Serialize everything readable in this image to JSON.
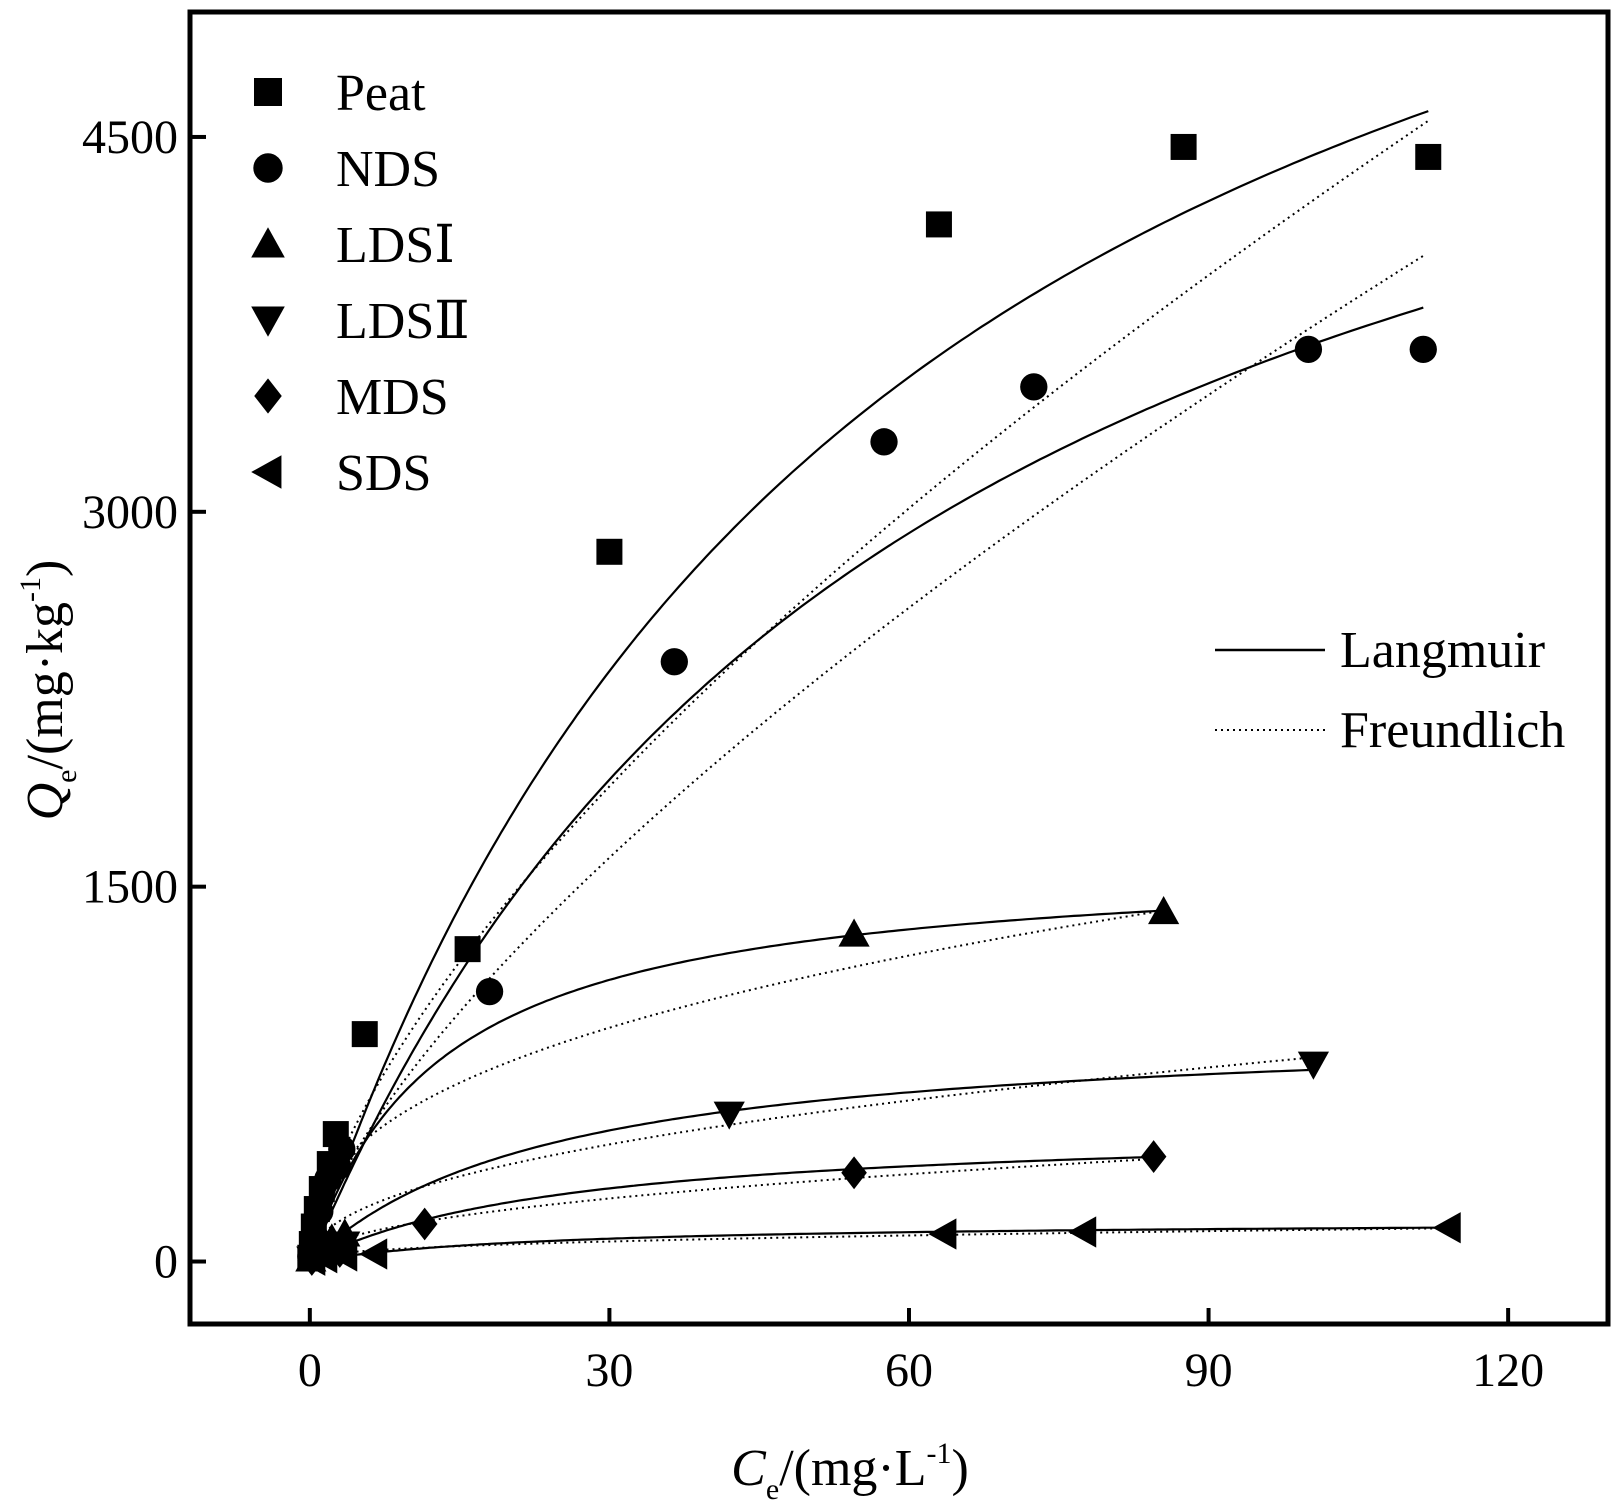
{
  "chart_data": {
    "type": "scatter",
    "title": "",
    "xlabel": {
      "main": "C",
      "sub": "e",
      "units_pre": "/(mg·L",
      "sup": "-1",
      "units_post": ")"
    },
    "ylabel": {
      "main": "Q",
      "sub": "e",
      "units_pre": "/(mg·kg",
      "sup": "-1",
      "units_post": ")"
    },
    "xlim": [
      -12,
      130
    ],
    "ylim": [
      -250,
      5000
    ],
    "xticks": [
      0,
      30,
      60,
      90,
      120
    ],
    "yticks": [
      0,
      1500,
      3000,
      4500
    ],
    "xtick_labels": [
      "0",
      "30",
      "60",
      "90",
      "120"
    ],
    "ytick_labels": [
      "0",
      "1500",
      "3000",
      "4500"
    ],
    "series": [
      {
        "name": "Peat",
        "marker": "square",
        "points": [
          [
            0.05,
            15
          ],
          [
            0.2,
            70
          ],
          [
            0.4,
            140
          ],
          [
            0.7,
            210
          ],
          [
            1.2,
            290
          ],
          [
            2.0,
            390
          ],
          [
            2.6,
            510
          ],
          [
            5.5,
            910
          ],
          [
            15.8,
            1250
          ],
          [
            30,
            2840
          ],
          [
            63,
            4150
          ],
          [
            87.5,
            4460
          ],
          [
            112,
            4420
          ]
        ],
        "langmuir": {
          "qm": 7050,
          "b": 0.0168,
          "xmax": 112
        },
        "freundlich": {
          "kf": 198,
          "n": 0.665,
          "xmax": 112
        }
      },
      {
        "name": "NDS",
        "marker": "circle",
        "points": [
          [
            0.1,
            20
          ],
          [
            0.5,
            100
          ],
          [
            1.0,
            200
          ],
          [
            1.8,
            330
          ],
          [
            2.8,
            380
          ],
          [
            3.2,
            450
          ],
          [
            18,
            1080
          ],
          [
            36.5,
            2400
          ],
          [
            57.5,
            3280
          ],
          [
            72.5,
            3500
          ],
          [
            100,
            3650
          ],
          [
            111.5,
            3650
          ]
        ],
        "langmuir": {
          "qm": 5970,
          "b": 0.0159,
          "xmax": 111.5
        },
        "freundlich": {
          "kf": 152,
          "n": 0.695,
          "xmax": 111.5
        }
      },
      {
        "name": "LDSⅠ",
        "marker": "triangle-up",
        "points": [
          [
            0.1,
            10
          ],
          [
            0.5,
            40
          ],
          [
            1.2,
            70
          ],
          [
            2.2,
            90
          ],
          [
            3.5,
            110
          ],
          [
            54.5,
            1310
          ],
          [
            85.5,
            1400
          ]
        ],
        "langmuir": {
          "qm": 1620,
          "b": 0.0762,
          "xmax": 85
        },
        "freundlich": {
          "kf": 250,
          "n": 0.388,
          "xmax": 85
        }
      },
      {
        "name": "LDSⅡ",
        "marker": "triangle-down",
        "points": [
          [
            0.2,
            10
          ],
          [
            0.8,
            30
          ],
          [
            2.0,
            50
          ],
          [
            3.5,
            70
          ],
          [
            42,
            590
          ],
          [
            100.5,
            790
          ]
        ],
        "langmuir": {
          "qm": 955,
          "b": 0.0406,
          "xmax": 100
        },
        "freundlich": {
          "kf": 98,
          "n": 0.46,
          "xmax": 100
        }
      },
      {
        "name": "MDS",
        "marker": "diamond",
        "points": [
          [
            0.2,
            8
          ],
          [
            1.0,
            20
          ],
          [
            3.0,
            40
          ],
          [
            11.5,
            150
          ],
          [
            54.5,
            355
          ],
          [
            84.5,
            420
          ]
        ],
        "langmuir": {
          "qm": 548,
          "b": 0.0382,
          "xmax": 84.5
        },
        "freundlich": {
          "kf": 51,
          "n": 0.47,
          "xmax": 84.5
        }
      },
      {
        "name": "SDS",
        "marker": "triangle-left",
        "points": [
          [
            0.3,
            5
          ],
          [
            1.5,
            15
          ],
          [
            3.5,
            22
          ],
          [
            6.5,
            30
          ],
          [
            63.5,
            110
          ],
          [
            77.5,
            118
          ],
          [
            114,
            135
          ]
        ],
        "langmuir": {
          "qm": 164,
          "b": 0.042,
          "xmax": 114
        },
        "freundlich": {
          "kf": 22,
          "n": 0.38,
          "xmax": 114
        }
      }
    ],
    "fit_legend": [
      {
        "label": "Langmuir",
        "style": "solid"
      },
      {
        "label": "Freundlich",
        "style": "dotted"
      }
    ]
  }
}
